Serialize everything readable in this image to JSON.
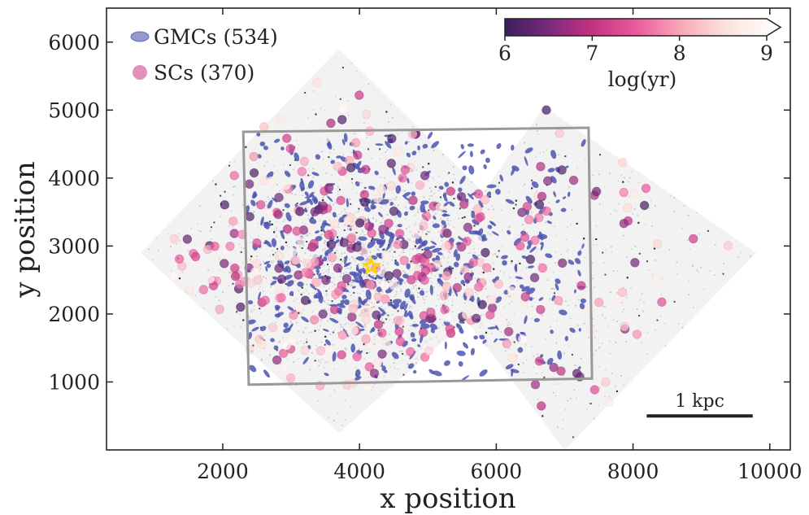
{
  "chart_data": {
    "type": "scatter",
    "xlabel": "x position",
    "ylabel": "y position",
    "xlim": [
      300,
      10300
    ],
    "ylim": [
      0,
      6500
    ],
    "x_ticks": [
      2000,
      4000,
      6000,
      8000,
      10000
    ],
    "y_ticks": [
      1000,
      2000,
      3000,
      4000,
      5000,
      6000
    ],
    "x_tick_labels": [
      "2000",
      "4000",
      "6000",
      "8000",
      "10000"
    ],
    "y_tick_labels": [
      "1000",
      "2000",
      "3000",
      "4000",
      "5000",
      "6000"
    ],
    "legend": [
      {
        "label": "GMCs (534)",
        "marker": "ellipse",
        "color": "#4c55b0"
      },
      {
        "label": "SCs (370)",
        "marker": "circle",
        "color": "#e58fbf"
      }
    ],
    "colorbar": {
      "label": "log(yr)",
      "ticks": [
        "6",
        "7",
        "8",
        "9"
      ],
      "range": [
        6,
        9
      ],
      "colormap": "RdPu_r",
      "colors": [
        "#3b1e5c",
        "#7a2a7e",
        "#c2337f",
        "#ea5a9e",
        "#f7a6b7",
        "#fbe0da",
        "#fffaf8"
      ],
      "extend": "max"
    },
    "center_marker": {
      "label": "",
      "x": 4170,
      "y": 2700,
      "color": "#ffd500"
    },
    "footprint_box": [
      [
        2300,
        4680
      ],
      [
        7350,
        4740
      ],
      [
        7400,
        1050
      ],
      [
        2380,
        960
      ]
    ],
    "survey_regions": [
      [
        [
          800,
          2900
        ],
        [
          3700,
          5900
        ],
        [
          6700,
          2900
        ],
        [
          3700,
          250
        ]
      ],
      [
        [
          5000,
          2650
        ],
        [
          6700,
          5050
        ],
        [
          9800,
          2900
        ],
        [
          7000,
          0
        ]
      ]
    ],
    "scale_bar": {
      "label": "1 kpc",
      "x_start": 8200,
      "x_end": 9750,
      "y": 500
    },
    "gmc_count": 534,
    "sc_count": 370,
    "gmc_color": "#4c55b0"
  }
}
